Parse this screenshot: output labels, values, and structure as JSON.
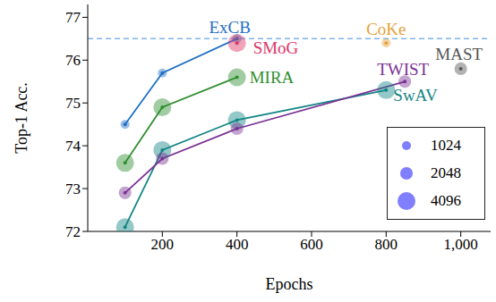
{
  "chart_data": {
    "type": "line",
    "x_label": "Epochs",
    "y_label": "Top-1 Acc.",
    "xlim": [
      0,
      1080
    ],
    "ylim": [
      72,
      77.3
    ],
    "xticks": [
      200,
      400,
      600,
      800,
      {
        "value": 1000,
        "label": "1,000"
      }
    ],
    "yticks": [
      72,
      73,
      74,
      75,
      76,
      77
    ],
    "series": [
      {
        "name": "ExCB",
        "type": "line",
        "color": "#1f6fc4",
        "batch_size": 1024,
        "x": [
          100,
          200,
          400
        ],
        "values": [
          74.5,
          75.7,
          76.5
        ]
      },
      {
        "name": "SMoG",
        "type": "scatter",
        "color": "#dc3567",
        "batch_size": 4096,
        "x": [
          400
        ],
        "values": [
          76.4
        ]
      },
      {
        "name": "MIRA",
        "type": "line",
        "color": "#2f8f2f",
        "batch_size": 4096,
        "x": [
          100,
          200,
          400
        ],
        "values": [
          73.6,
          74.9,
          75.6
        ]
      },
      {
        "name": "SwAV",
        "type": "line",
        "color": "#138585",
        "batch_size": 4096,
        "x": [
          100,
          200,
          400,
          800
        ],
        "values": [
          72.1,
          73.9,
          74.6,
          75.3
        ]
      },
      {
        "name": "TWIST",
        "type": "line",
        "color": "#7b3294",
        "batch_size": 2048,
        "x": [
          100,
          200,
          400,
          850
        ],
        "values": [
          72.9,
          73.7,
          74.4,
          75.5
        ]
      },
      {
        "name": "CoKe",
        "type": "scatter",
        "color": "#e6a23c",
        "batch_size": 1024,
        "x": [
          800
        ],
        "values": [
          76.4
        ]
      },
      {
        "name": "MAST",
        "type": "scatter",
        "color": "#555555",
        "batch_size": 2048,
        "x": [
          1000
        ],
        "values": [
          75.8
        ]
      }
    ],
    "reference_lines": [
      {
        "y": 76.5,
        "color": "#7fb3e8",
        "line_style": "dashed"
      }
    ],
    "size_legend": {
      "values": [
        1024,
        2048,
        4096
      ],
      "color": "#7f7fff"
    }
  }
}
